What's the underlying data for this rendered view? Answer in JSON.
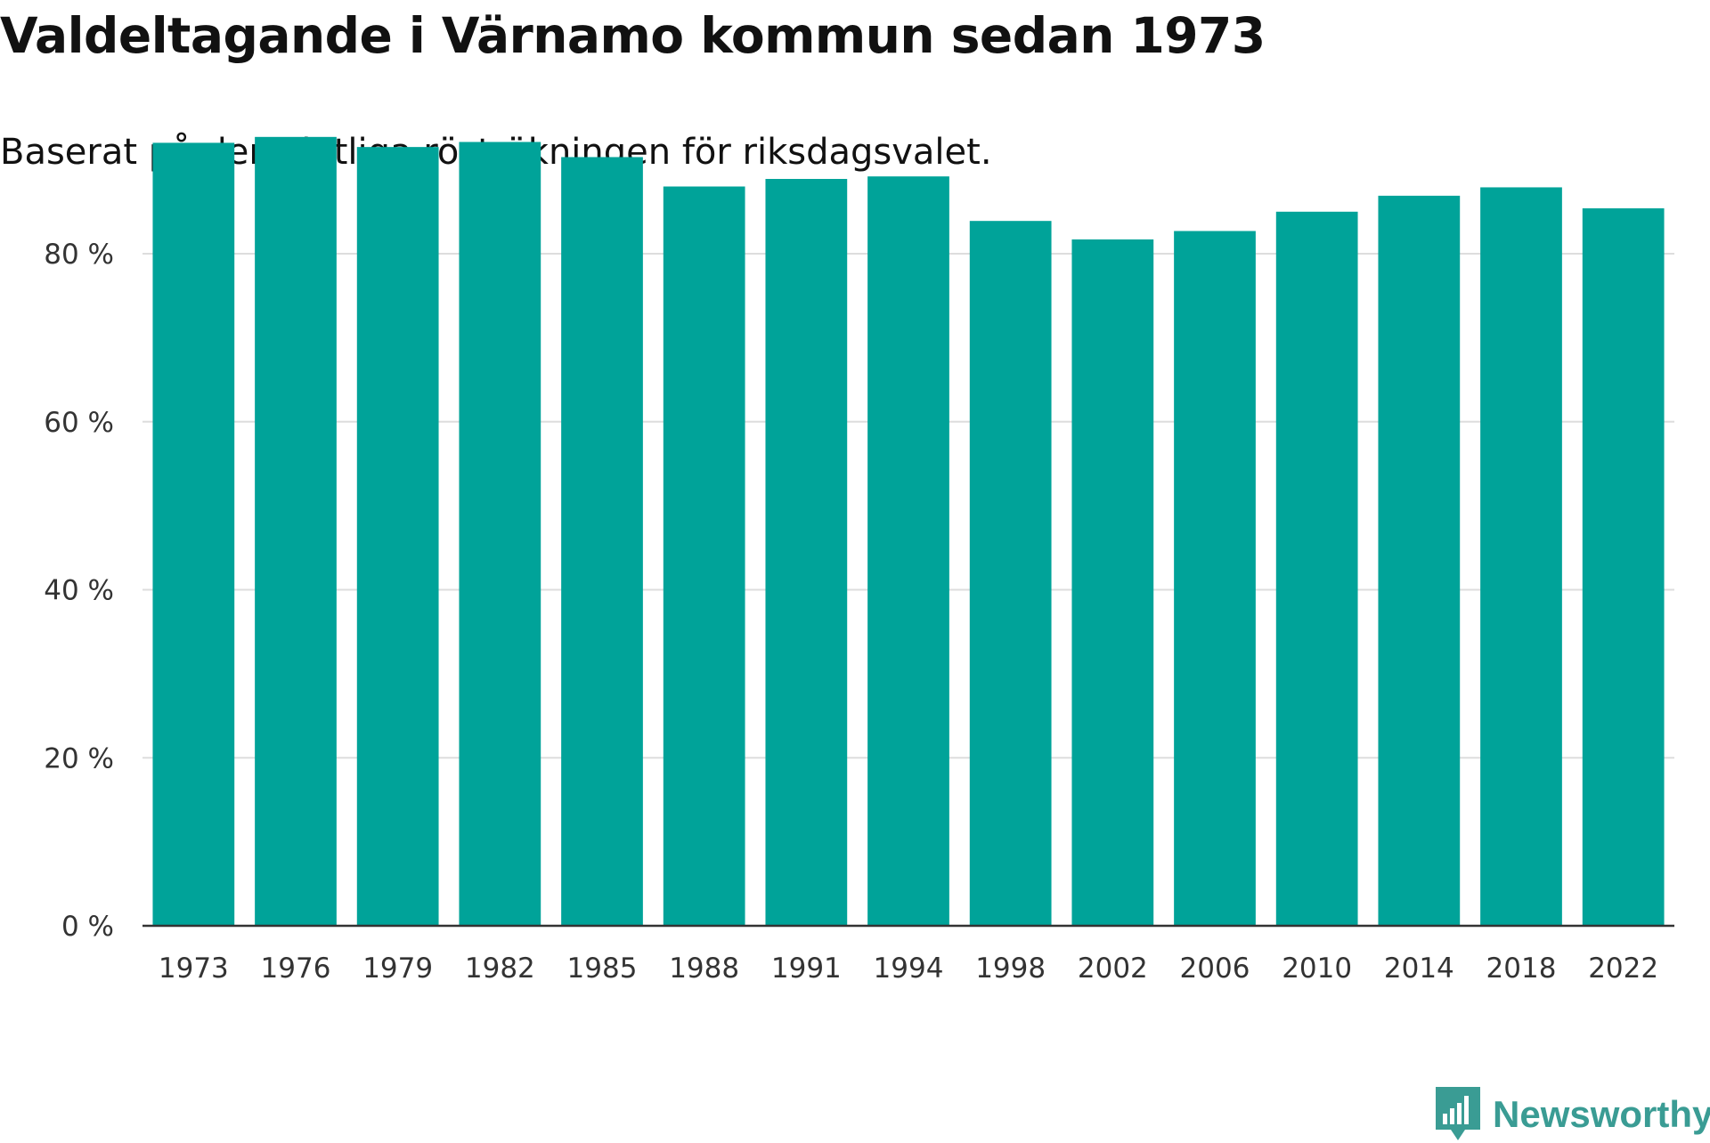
{
  "title": "Valdeltagande i Värnamo kommun sedan 1973",
  "subtitle": "Baserat på den slutliga rösträkningen för riksdagsvalet.",
  "brand": {
    "name": "Newsworthy",
    "icon": "newsworthy-logo-icon",
    "color": "#3a9c94"
  },
  "colors": {
    "bar": "#00a399",
    "grid": "#dddddd",
    "axis": "#333333"
  },
  "chart_data": {
    "type": "bar",
    "title": "Valdeltagande i Värnamo kommun sedan 1973",
    "subtitle": "Baserat på den slutliga rösträkningen för riksdagsvalet.",
    "xlabel": "",
    "ylabel": "",
    "categories": [
      "1973",
      "1976",
      "1979",
      "1982",
      "1985",
      "1988",
      "1991",
      "1994",
      "1998",
      "2002",
      "2006",
      "2010",
      "2014",
      "2018",
      "2022"
    ],
    "values": [
      93.2,
      93.9,
      92.7,
      93.3,
      91.5,
      88.0,
      88.9,
      89.2,
      83.9,
      81.7,
      82.7,
      85.0,
      86.9,
      87.9,
      85.4
    ],
    "ylim": [
      0,
      100
    ],
    "yticks": [
      0,
      20,
      40,
      60,
      80
    ],
    "ytick_labels": [
      "0 %",
      "20 %",
      "40 %",
      "60 %",
      "80 %"
    ],
    "grid": true,
    "legend": "none"
  }
}
